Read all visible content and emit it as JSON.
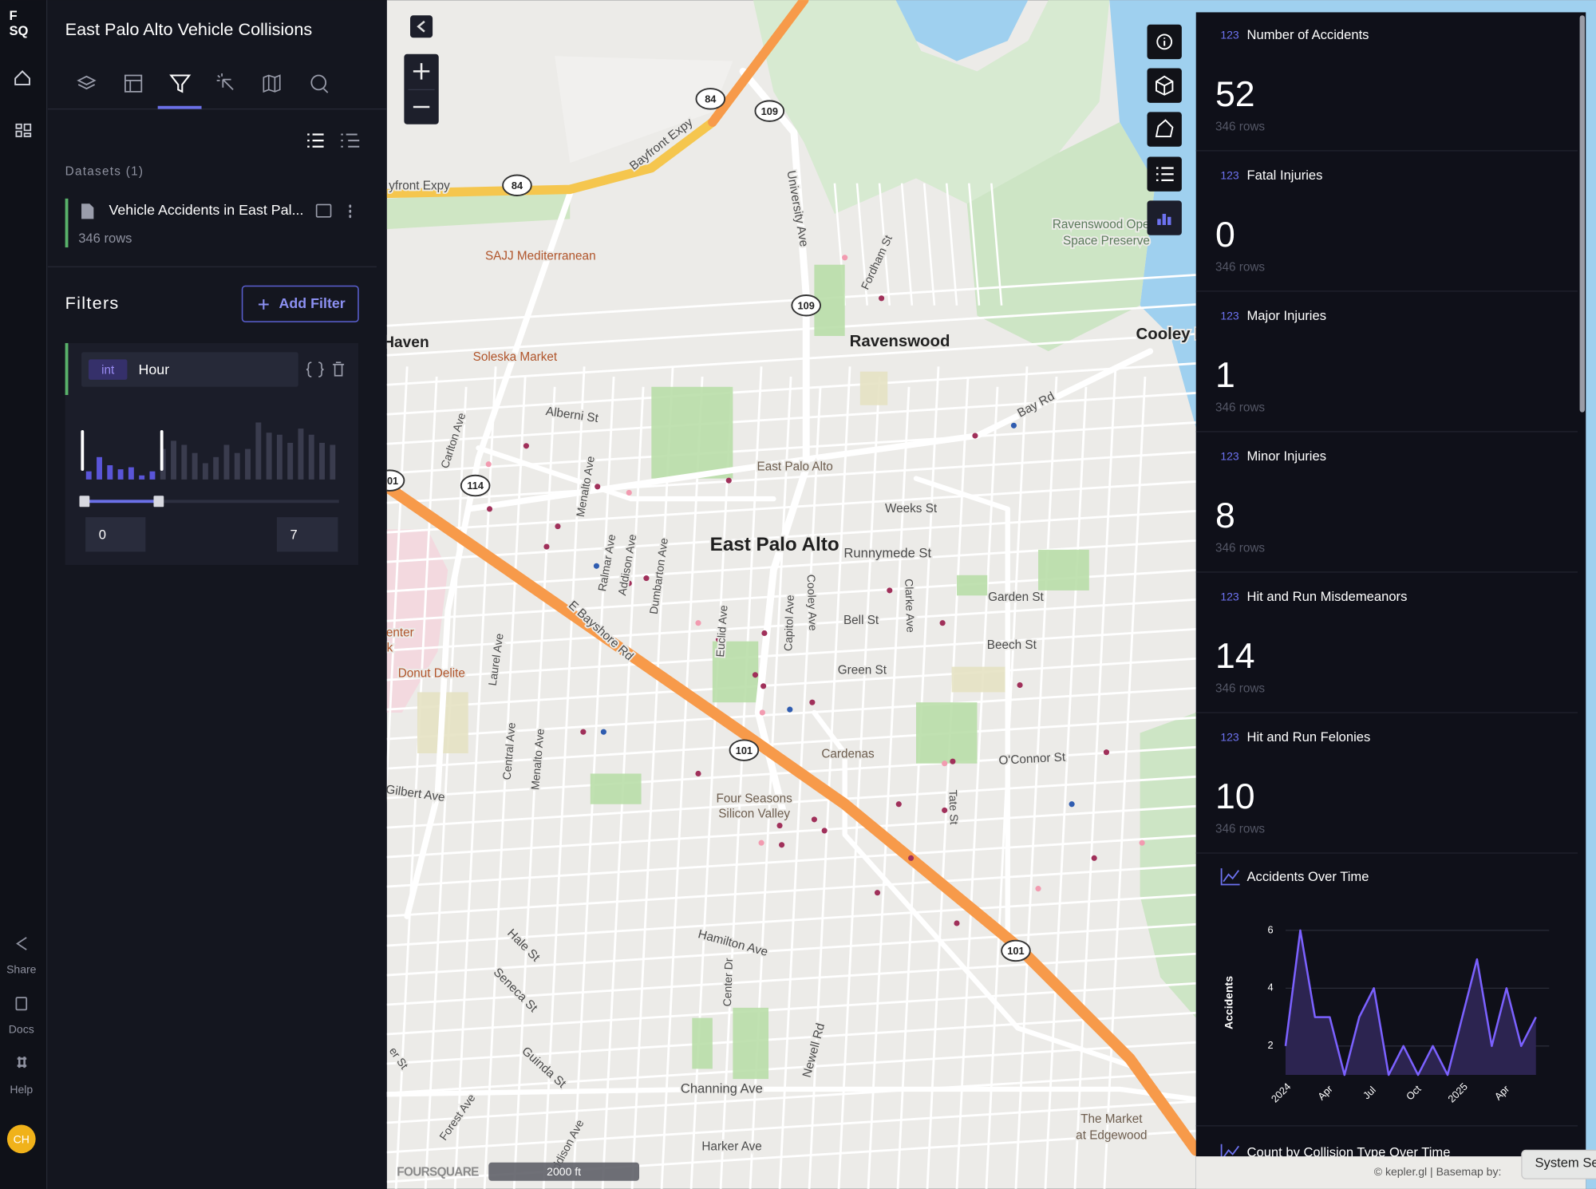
{
  "rail": {
    "logo": [
      "F",
      "SQ"
    ],
    "items": [
      "Share",
      "Docs",
      "Help"
    ],
    "avatar": "CH"
  },
  "sidebar": {
    "title": "East Palo Alto Vehicle Collisions",
    "datasets_label": "Datasets (1)",
    "dataset": {
      "name": "Vehicle Accidents in East Pal...",
      "rows": "346 rows"
    },
    "filters_label": "Filters",
    "add_filter": "Add Filter",
    "filter": {
      "type": "int",
      "field": "Hour",
      "histogram": [
        8,
        22,
        14,
        10,
        12,
        4,
        8,
        30,
        38,
        34,
        26,
        16,
        22,
        34,
        26,
        30,
        56,
        46,
        44,
        36,
        50,
        44,
        36,
        34
      ],
      "range": [
        0,
        7
      ]
    }
  },
  "map": {
    "labels": [
      "Bayfront Expy",
      "yfront Expy",
      "University Ave",
      "Fordham St",
      "Ravenswood Open",
      "Space Preserve",
      "SAJJ Mediterranean",
      "Haven",
      "Soleska Market",
      "Ravenswood",
      "Cooley Landing",
      "Bay Rd",
      "Alberni St",
      "Carlton Ave",
      "Menalto Ave",
      "East Palo Alto",
      "Weeks St",
      "East Palo Alto",
      "Runnymede St",
      "Ralmar Ave",
      "Addison Ave",
      "Dumbarton Ave",
      "E Bayshore Rd",
      "Euclid Ave",
      "Capitol Ave",
      "Cooley Ave",
      "Clarke Ave",
      "Garden St",
      "Bell St",
      "Beech St",
      "Green St",
      "enter",
      "k",
      "Donut Delite",
      "Laurel Ave",
      "Central Ave",
      "Menalto Ave",
      "Cardenas",
      "O'Connor St",
      "Gilbert Ave",
      "Four Seasons",
      "Silicon Valley",
      "Tate St",
      "Hale St",
      "Hamilton Ave",
      "Seneca St",
      "Center Dr",
      "Newell Rd",
      "er St",
      "Guinda St",
      "Channing Ave",
      "Forest Ave",
      "The Market",
      "at Edgewood",
      "Harker Ave",
      "Addison Ave"
    ],
    "shields": [
      "84",
      "84",
      "109",
      "109",
      "114",
      "101",
      "101",
      "101"
    ],
    "scale": "2000 ft",
    "watermark": "FOURSQUARE",
    "attribution": "© kepler.gl | Basemap by:",
    "system_tab": "System Se"
  },
  "stats": {
    "icon_label": "123",
    "cards": [
      {
        "title": "Number of Accidents",
        "value": 52,
        "rows": "346 rows"
      },
      {
        "title": "Fatal Injuries",
        "value": 0,
        "rows": "346 rows"
      },
      {
        "title": "Major Injuries",
        "value": 1,
        "rows": "346 rows"
      },
      {
        "title": "Minor Injuries",
        "value": 8,
        "rows": "346 rows"
      },
      {
        "title": "Hit and Run Misdemeanors",
        "value": 14,
        "rows": "346 rows"
      },
      {
        "title": "Hit and Run Felonies",
        "value": 10,
        "rows": "346 rows"
      }
    ],
    "next_card_title": "Count by Collision Type Over Time"
  },
  "chart_data": {
    "type": "line",
    "title": "Accidents Over Time",
    "y_label": "Accidents",
    "categories": [
      "2024",
      null,
      null,
      "Apr",
      null,
      null,
      "Jul",
      null,
      null,
      "Oct",
      null,
      null,
      "2025",
      null,
      null,
      "Apr",
      null,
      null
    ],
    "values": [
      2,
      6,
      3,
      3,
      1,
      3,
      4,
      1,
      2,
      1,
      2,
      1,
      3,
      5,
      2,
      4,
      2,
      3
    ],
    "ylim": [
      1,
      6
    ],
    "yticks": [
      2,
      4,
      6
    ],
    "color": "#7b61ff",
    "fill": "#2c2450",
    "grid": true
  }
}
